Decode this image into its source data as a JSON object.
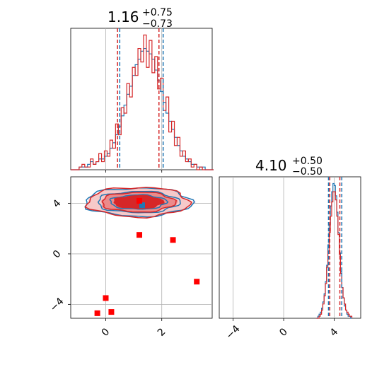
{
  "chart_data": [
    {
      "type": "histogram",
      "panel": "top-left",
      "title": {
        "median": "1.16",
        "upper": "+0.75",
        "lower": "−0.73"
      },
      "xlim": [
        -1.25,
        3.8
      ],
      "grid": true,
      "bin_edges_start": -1.25,
      "bin_width": 0.1,
      "series": [
        {
          "color": "#1f77b4",
          "counts": [
            0,
            0,
            0,
            1,
            1,
            1,
            2,
            3,
            2,
            3,
            4,
            4,
            5,
            6,
            8,
            10,
            13,
            16,
            20,
            24,
            28,
            31,
            35,
            39,
            41,
            44,
            45,
            44,
            43,
            41,
            37,
            33,
            29,
            25,
            21,
            18,
            15,
            12,
            9,
            7,
            5,
            4,
            3,
            2,
            2,
            1,
            1,
            1,
            0,
            0,
            0
          ],
          "quantiles": [
            0.5,
            2.05
          ]
        },
        {
          "color": "#d62728",
          "counts": [
            0,
            0,
            0,
            1,
            2,
            1,
            1,
            4,
            2,
            3,
            6,
            3,
            7,
            5,
            11,
            8,
            17,
            13,
            23,
            21,
            32,
            27,
            38,
            35,
            45,
            40,
            50,
            38,
            48,
            36,
            42,
            30,
            34,
            22,
            27,
            14,
            18,
            9,
            12,
            5,
            7,
            3,
            4,
            1,
            2,
            0,
            1,
            0,
            0,
            0,
            0
          ],
          "quantiles": [
            0.42,
            1.9
          ]
        }
      ]
    },
    {
      "type": "scatter-contour",
      "panel": "bottom-left",
      "xlim": [
        -1.25,
        3.8
      ],
      "ylim": [
        -5.1,
        6.1
      ],
      "xticks": [
        "0",
        "2"
      ],
      "yticks": [
        "4",
        "0",
        "−4"
      ],
      "grid": true,
      "contour_center": [
        1.16,
        4.1
      ],
      "series": [
        {
          "name": "",
          "color": "#1f77b4",
          "marker": "square",
          "points": [
            [
              1.3,
              3.85
            ]
          ]
        },
        {
          "name": "",
          "color": "#ff0000",
          "marker": "square",
          "points": [
            [
              1.2,
              4.2
            ],
            [
              1.2,
              1.5
            ],
            [
              2.4,
              1.1
            ],
            [
              3.25,
              -2.2
            ],
            [
              0.0,
              -3.5
            ],
            [
              -0.3,
              -4.7
            ],
            [
              0.2,
              -4.6
            ]
          ]
        }
      ]
    },
    {
      "type": "histogram",
      "panel": "bottom-right",
      "title": {
        "median": "4.10",
        "upper": "+0.50",
        "lower": "−0.50"
      },
      "xlim": [
        -5.1,
        6.1
      ],
      "xticks": [
        "−4",
        "0",
        "4"
      ],
      "grid": true,
      "bin_edges_start": 2.6,
      "bin_width": 0.1,
      "series": [
        {
          "color": "#1f77b4",
          "counts": [
            0,
            1,
            2,
            3,
            5,
            8,
            12,
            18,
            26,
            36,
            46,
            55,
            62,
            66,
            65,
            60,
            52,
            42,
            32,
            23,
            15,
            10,
            6,
            4,
            2,
            1,
            1,
            0
          ],
          "quantiles": [
            3.55,
            4.6
          ]
        },
        {
          "color": "#d62728",
          "counts": [
            0,
            0,
            1,
            2,
            4,
            7,
            11,
            17,
            25,
            33,
            42,
            50,
            57,
            62,
            62,
            58,
            50,
            41,
            31,
            22,
            15,
            10,
            7,
            4,
            3,
            2,
            1,
            1
          ],
          "quantiles": [
            3.65,
            4.45
          ]
        }
      ]
    }
  ]
}
